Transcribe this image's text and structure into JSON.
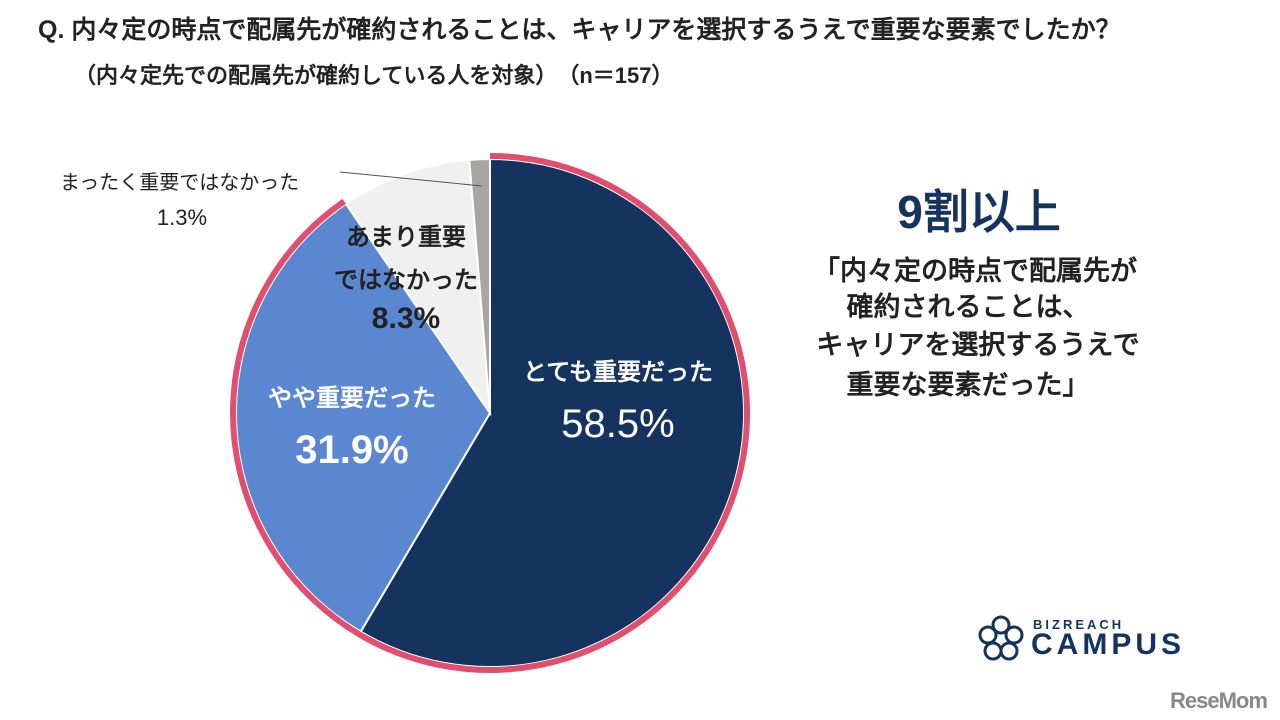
{
  "title": "Q. 内々定の時点で配属先が確約されることは、キャリアを選択するうえで重要な要素でしたか？",
  "subtitle": "（内々定先での配属先が確約している人を対象）　（n＝157）",
  "chart_data": {
    "type": "pie",
    "start": "top",
    "direction": "clockwise",
    "slices": [
      {
        "label": "とても重要だった",
        "value": 58.5,
        "display": "58.5%",
        "color": "#14335e"
      },
      {
        "label": "やや重要だった",
        "value": 31.9,
        "display": "31.9%",
        "color": "#5b87d0"
      },
      {
        "label_lines": [
          "あまり重要",
          "ではなかった"
        ],
        "value": 8.3,
        "display": "8.3%",
        "color": "#f0f0f0"
      },
      {
        "label": "まったく重要ではなかった",
        "value": 1.3,
        "display": "1.3%",
        "color": "#aaa5a5"
      }
    ],
    "highlight": {
      "color": "#e0506e",
      "covers": [
        "とても重要だった",
        "やや重要だった"
      ]
    }
  },
  "callout": {
    "headline": "9割以上",
    "lines": [
      "「内々定の時点で配属先が",
      "確約されることは、",
      "キャリアを選択するうえで",
      "重要な要素だった」"
    ]
  },
  "logos": {
    "brand_top": "BIZREACH",
    "brand_main": "CAMPUS",
    "watermark": "ReseMom"
  }
}
